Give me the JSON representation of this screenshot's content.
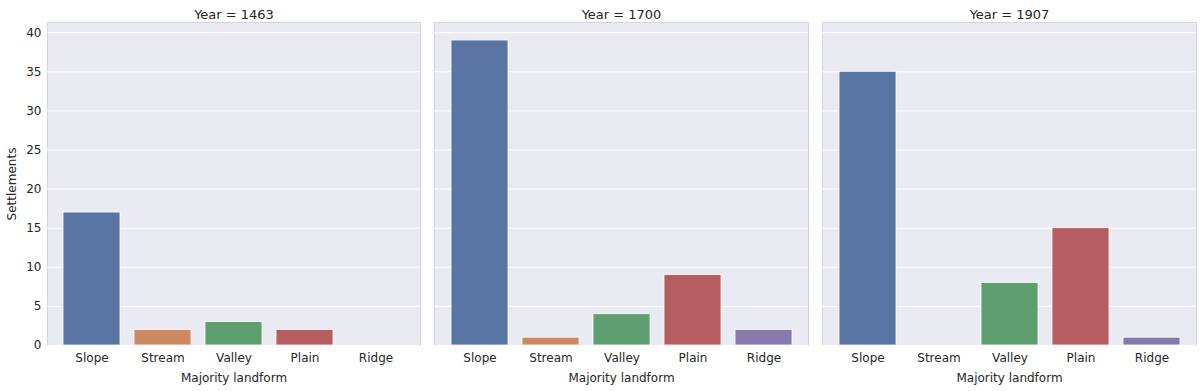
{
  "chart_data": [
    {
      "type": "bar",
      "title": "Year = 1463",
      "categories": [
        "Slope",
        "Stream",
        "Valley",
        "Plain",
        "Ridge"
      ],
      "values": [
        17,
        2,
        3,
        2,
        0
      ],
      "colors": [
        "#5975a4",
        "#cc8963",
        "#5f9e6e",
        "#b55d60",
        "#857aab"
      ],
      "xlabel": "Majority landform",
      "ylabel": "Settlements",
      "ylim": [
        0,
        41.3
      ],
      "yticks": [
        0,
        5,
        10,
        15,
        20,
        25,
        30,
        35,
        40
      ],
      "grid": true
    },
    {
      "type": "bar",
      "title": "Year = 1700",
      "categories": [
        "Slope",
        "Stream",
        "Valley",
        "Plain",
        "Ridge"
      ],
      "values": [
        39,
        1,
        4,
        9,
        2
      ],
      "colors": [
        "#5975a4",
        "#cc8963",
        "#5f9e6e",
        "#b55d60",
        "#857aab"
      ],
      "xlabel": "Majority landform",
      "ylim": [
        0,
        41.3
      ],
      "yticks": [
        0,
        5,
        10,
        15,
        20,
        25,
        30,
        35,
        40
      ],
      "grid": true,
      "tick_labels": "x"
    },
    {
      "type": "bar",
      "title": "Year = 1907",
      "categories": [
        "Slope",
        "Stream",
        "Valley",
        "Plain",
        "Ridge"
      ],
      "values": [
        35,
        0,
        8,
        15,
        1
      ],
      "colors": [
        "#5975a4",
        "#cc8963",
        "#5f9e6e",
        "#b55d60",
        "#857aab"
      ],
      "xlabel": "Majority landform",
      "ylim": [
        0,
        41.3
      ],
      "yticks": [
        0,
        5,
        10,
        15,
        20,
        25,
        30,
        35,
        40
      ],
      "grid": true,
      "tick_labels": "x"
    }
  ]
}
